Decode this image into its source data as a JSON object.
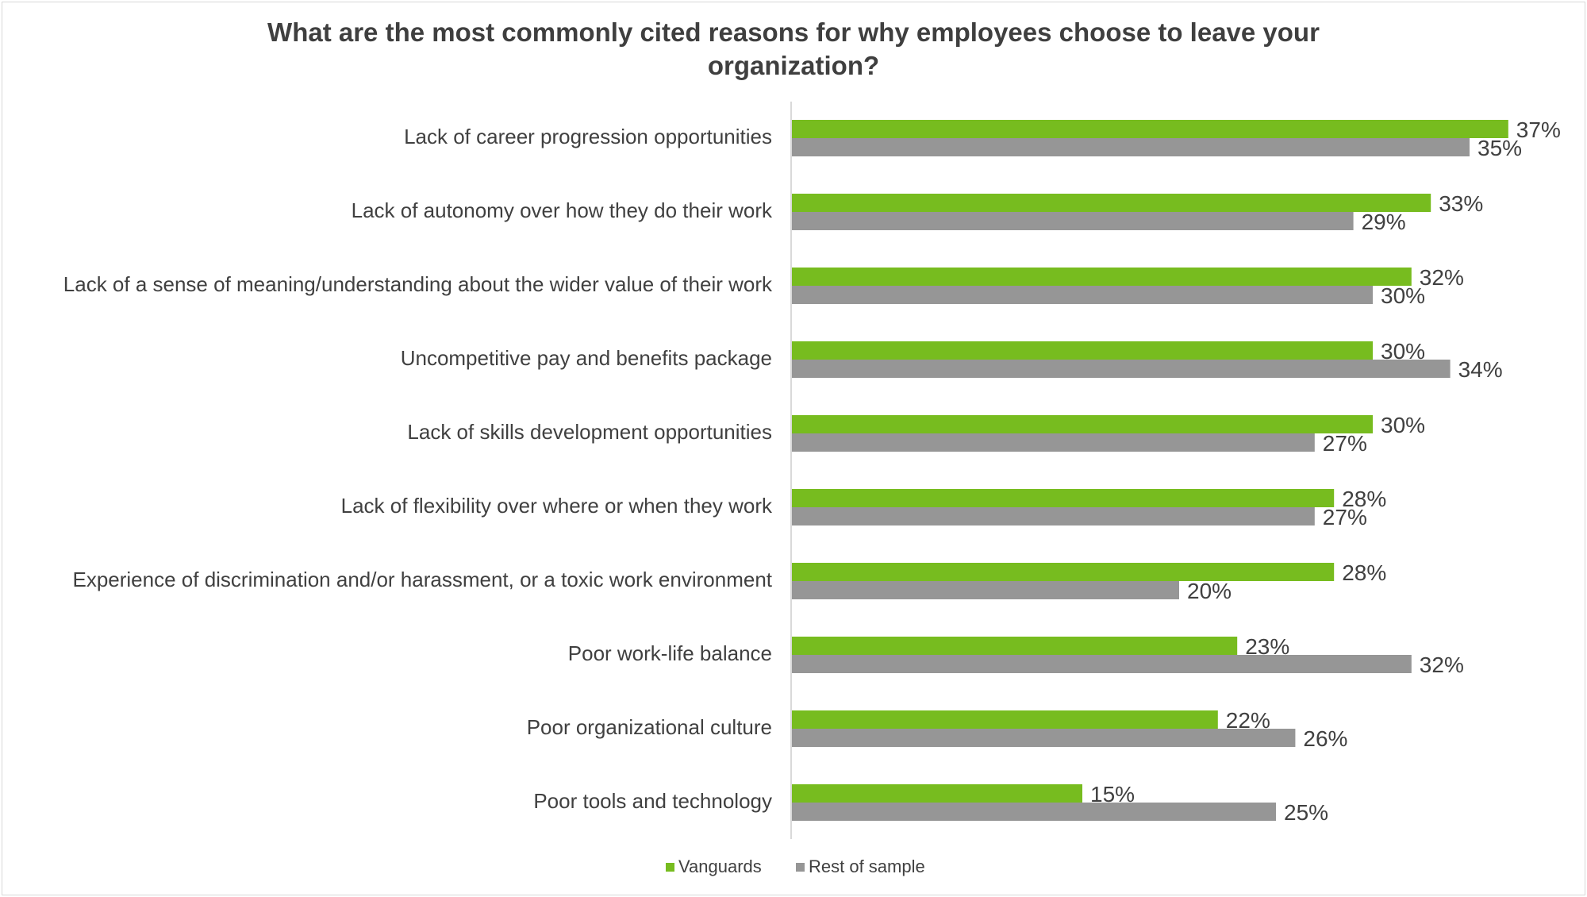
{
  "chart_data": {
    "type": "bar",
    "orientation": "horizontal",
    "title": "What are the most commonly cited reasons for why employees choose to leave your organization?",
    "title_lines": [
      "What are the most commonly cited reasons for why employees choose to leave your",
      "organization?"
    ],
    "categories": [
      "Lack of career progression opportunities",
      "Lack of autonomy over how they do their work",
      "Lack of a sense of meaning/understanding about the wider value of their work",
      "Uncompetitive pay and benefits package",
      "Lack of skills development opportunities",
      "Lack of flexibility over where or when they work",
      "Experience of discrimination and/or harassment, or a toxic work environment",
      "Poor work-life balance",
      "Poor organizational culture",
      "Poor tools and technology"
    ],
    "series": [
      {
        "name": "Vanguards",
        "color": "#77bc1f",
        "values": [
          37,
          33,
          32,
          30,
          30,
          28,
          28,
          23,
          22,
          15
        ]
      },
      {
        "name": "Rest of sample",
        "color": "#969696",
        "values": [
          35,
          29,
          30,
          34,
          27,
          27,
          20,
          32,
          26,
          25
        ]
      }
    ],
    "value_suffix": "%",
    "xlim": [
      0,
      40
    ],
    "grid": false,
    "axis_line_color": "#d9d9d9",
    "legend": "bottom-center"
  }
}
